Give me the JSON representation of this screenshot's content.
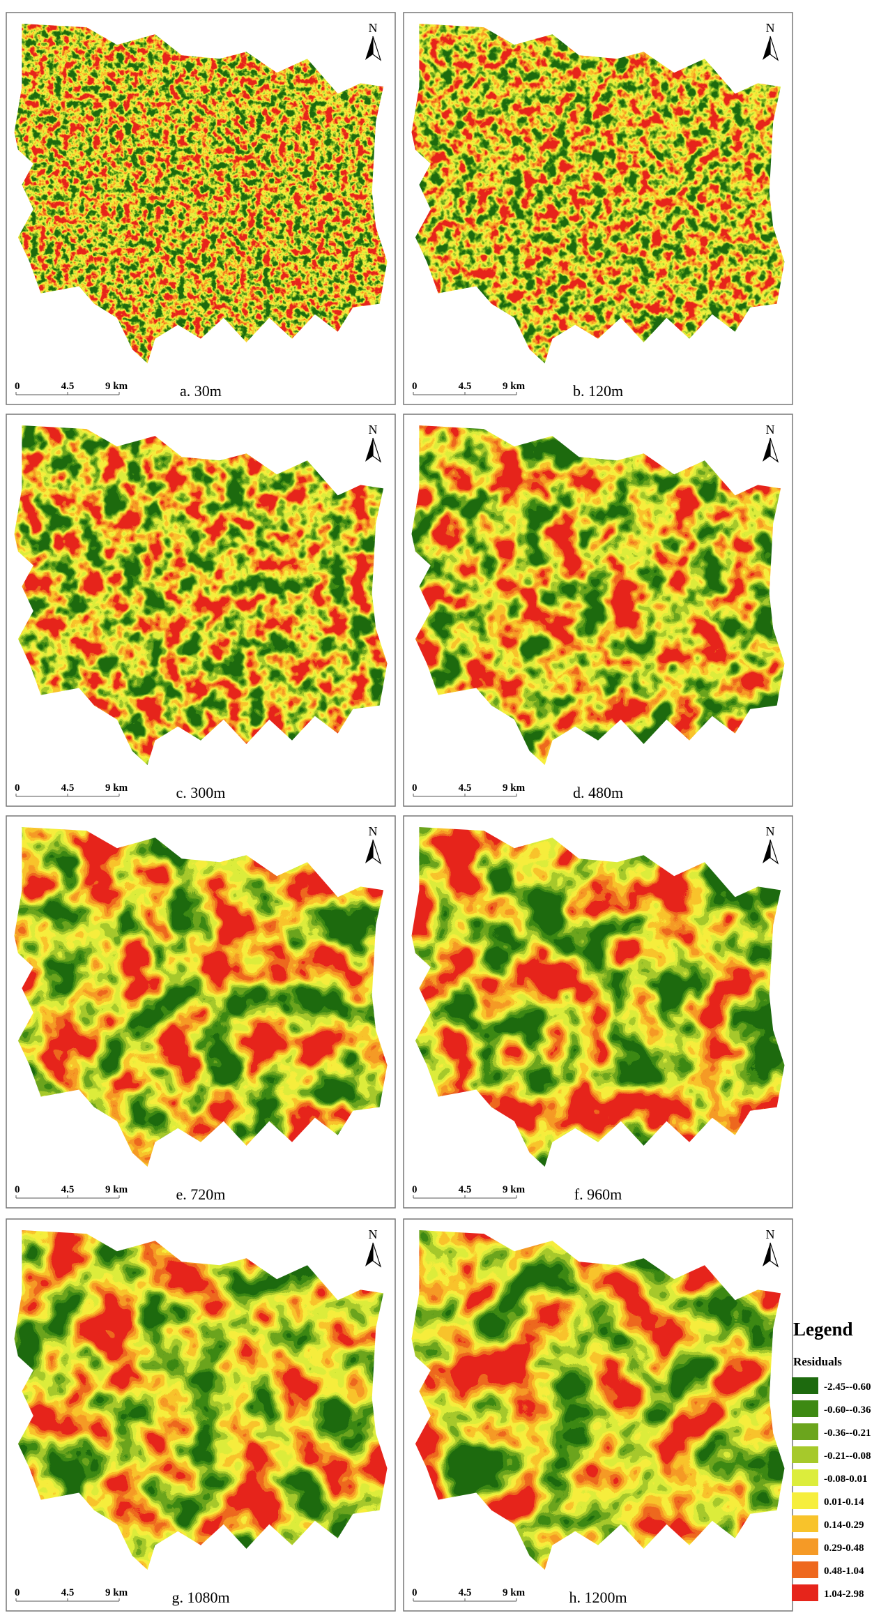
{
  "north_label": "N",
  "scale_bar": {
    "labels": [
      "0",
      "4.5",
      "9 km"
    ]
  },
  "panels": [
    {
      "label": "a. 30m"
    },
    {
      "label": "b. 120m"
    },
    {
      "label": "c. 300m"
    },
    {
      "label": "d. 480m"
    },
    {
      "label": "e. 720m"
    },
    {
      "label": "f. 960m"
    },
    {
      "label": "g. 1080m"
    },
    {
      "label": "h. 1200m"
    }
  ],
  "legend": {
    "title": "Legend",
    "subtitle": "Residuals",
    "items": [
      {
        "label": "-2.45--0.60",
        "color": "#1d6a0e"
      },
      {
        "label": "-0.60--0.36",
        "color": "#3d8913"
      },
      {
        "label": "-0.36--0.21",
        "color": "#6ba51d"
      },
      {
        "label": "-0.21--0.08",
        "color": "#a6c92b"
      },
      {
        "label": "-0.08-0.01",
        "color": "#dced3c"
      },
      {
        "label": "0.01-0.14",
        "color": "#f6ee3d"
      },
      {
        "label": "0.14-0.29",
        "color": "#f8c32b"
      },
      {
        "label": "0.29-0.48",
        "color": "#f59a26"
      },
      {
        "label": "0.48-1.04",
        "color": "#ee681e"
      },
      {
        "label": "1.04-2.98",
        "color": "#e6251b"
      }
    ]
  }
}
